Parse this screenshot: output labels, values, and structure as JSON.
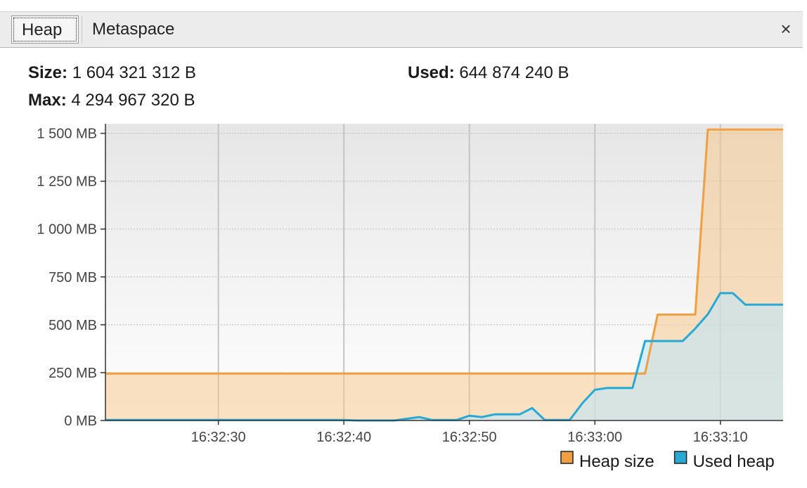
{
  "tabs": [
    {
      "label": "Heap",
      "active": true
    },
    {
      "label": "Metaspace",
      "active": false
    }
  ],
  "close_label": "×",
  "stats": {
    "size_label": "Size:",
    "size_value": "1 604 321 312 B",
    "used_label": "Used:",
    "used_value": "644 874 240 B",
    "max_label": "Max:",
    "max_value": "4 294 967 320 B"
  },
  "chart_data": {
    "type": "area",
    "title": "",
    "ylabel": "",
    "xlabel": "",
    "ylim": [
      0,
      1550
    ],
    "xlim_seconds": [
      "16:32:21",
      "16:33:15"
    ],
    "y_ticks": [
      {
        "value": 0,
        "label": "0 MB"
      },
      {
        "value": 250,
        "label": "250 MB"
      },
      {
        "value": 500,
        "label": "500 MB"
      },
      {
        "value": 750,
        "label": "750 MB"
      },
      {
        "value": 1000,
        "label": "1 000 MB"
      },
      {
        "value": 1250,
        "label": "1 250 MB"
      },
      {
        "value": 1500,
        "label": "1 500 MB"
      }
    ],
    "x_ticks": [
      "16:32:30",
      "16:32:40",
      "16:32:50",
      "16:33:00",
      "16:33:10"
    ],
    "grid": true,
    "legend_position": "bottom-right",
    "series": [
      {
        "name": "Heap size",
        "color": "#f0a040",
        "fill": "#f5c890",
        "points": [
          [
            "16:32:21",
            245
          ],
          [
            "16:33:04",
            245
          ],
          [
            "16:33:05",
            553
          ],
          [
            "16:33:08",
            553
          ],
          [
            "16:33:09",
            1520
          ],
          [
            "16:33:15",
            1520
          ]
        ]
      },
      {
        "name": "Used heap",
        "color": "#27a9d6",
        "fill": "#bfe6f6",
        "points": [
          [
            "16:32:21",
            3
          ],
          [
            "16:32:40",
            3
          ],
          [
            "16:32:41",
            0
          ],
          [
            "16:32:44",
            0
          ],
          [
            "16:32:46",
            18
          ],
          [
            "16:32:47",
            3
          ],
          [
            "16:32:49",
            3
          ],
          [
            "16:32:50",
            25
          ],
          [
            "16:32:51",
            18
          ],
          [
            "16:32:52",
            32
          ],
          [
            "16:32:54",
            32
          ],
          [
            "16:32:55",
            65
          ],
          [
            "16:32:56",
            3
          ],
          [
            "16:32:58",
            3
          ],
          [
            "16:32:59",
            90
          ],
          [
            "16:33:00",
            160
          ],
          [
            "16:33:01",
            170
          ],
          [
            "16:33:03",
            170
          ],
          [
            "16:33:04",
            415
          ],
          [
            "16:33:07",
            415
          ],
          [
            "16:33:08",
            480
          ],
          [
            "16:33:09",
            555
          ],
          [
            "16:33:10",
            665
          ],
          [
            "16:33:11",
            665
          ],
          [
            "16:33:12",
            605
          ],
          [
            "16:33:15",
            605
          ]
        ]
      }
    ]
  }
}
